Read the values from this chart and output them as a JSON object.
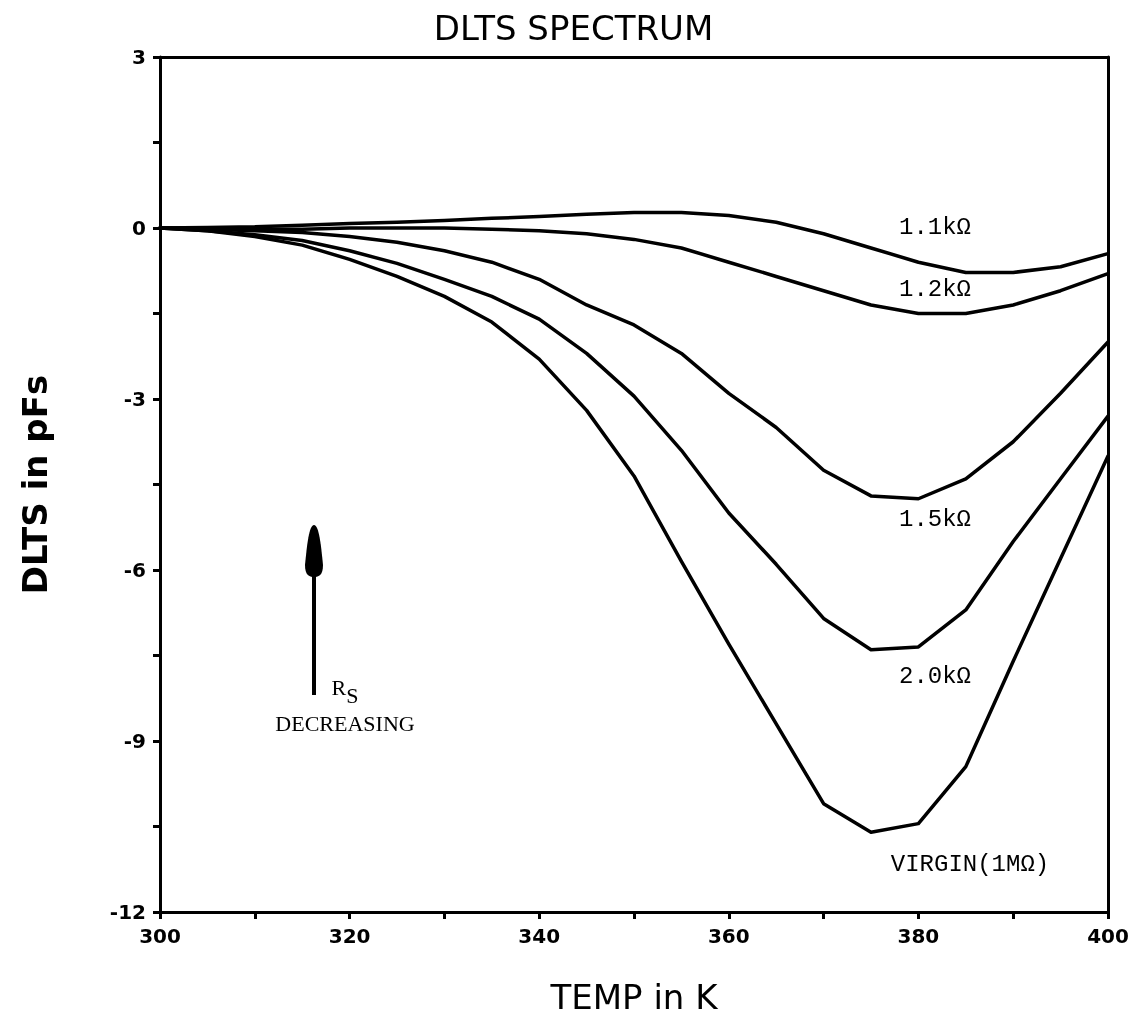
{
  "chart_data": {
    "type": "line",
    "title": "DLTS SPECTRUM",
    "xlabel": "TEMP in K",
    "ylabel": "DLTS in pFs",
    "x": [
      300,
      305,
      310,
      315,
      320,
      325,
      330,
      335,
      340,
      345,
      350,
      355,
      360,
      365,
      370,
      375,
      380,
      385,
      390,
      395,
      400
    ],
    "series": [
      {
        "color": "#000000",
        "values": [
          0,
          0.01,
          0.02,
          0.05,
          0.08,
          0.1,
          0.13,
          0.17,
          0.2,
          0.24,
          0.27,
          0.27,
          0.22,
          0.1,
          -0.1,
          -0.35,
          -0.6,
          -0.78,
          -0.78,
          -0.68,
          -0.45
        ]
      },
      {
        "color": "#000000",
        "values": [
          0,
          0,
          -0.02,
          -0.02,
          0,
          0,
          0,
          -0.02,
          -0.05,
          -0.1,
          -0.2,
          -0.35,
          -0.6,
          -0.85,
          -1.1,
          -1.35,
          -1.5,
          -1.5,
          -1.35,
          -1.1,
          -0.8
        ]
      },
      {
        "color": "#000000",
        "values": [
          0,
          -0.02,
          -0.05,
          -0.08,
          -0.15,
          -0.25,
          -0.4,
          -0.6,
          -0.9,
          -1.35,
          -1.7,
          -2.2,
          -2.9,
          -3.5,
          -4.25,
          -4.7,
          -4.75,
          -4.4,
          -3.75,
          -2.9,
          -2.0
        ]
      },
      {
        "color": "#000000",
        "values": [
          0,
          -0.05,
          -0.12,
          -0.22,
          -0.4,
          -0.62,
          -0.9,
          -1.2,
          -1.6,
          -2.2,
          -2.95,
          -3.9,
          -5.0,
          -5.9,
          -6.85,
          -7.4,
          -7.35,
          -6.7,
          -5.5,
          -4.4,
          -3.3
        ]
      },
      {
        "color": "#000000",
        "values": [
          0,
          -0.05,
          -0.15,
          -0.3,
          -0.55,
          -0.85,
          -1.2,
          -1.65,
          -2.3,
          -3.2,
          -4.35,
          -5.85,
          -7.3,
          -8.7,
          -10.1,
          -10.6,
          -10.45,
          -9.45,
          -7.6,
          -5.8,
          -4.0
        ]
      }
    ],
    "xlim": [
      300,
      400
    ],
    "xticks": [
      300,
      {
        "value": 310,
        "label": null
      },
      320,
      {
        "value": 330,
        "label": null
      },
      340,
      {
        "value": 350,
        "label": null
      },
      360,
      {
        "value": 370,
        "label": null
      },
      380,
      {
        "value": 390,
        "label": null
      },
      400
    ],
    "ylim": [
      -12,
      3
    ],
    "yticks": [
      -12,
      {
        "value": -10.5,
        "label": null
      },
      -9,
      {
        "value": -7.5,
        "label": null
      },
      -6,
      {
        "value": -4.5,
        "label": null
      },
      -3,
      {
        "value": -1.5,
        "label": null
      },
      0,
      {
        "value": 1.5,
        "label": null
      },
      3
    ],
    "grid": false,
    "marker": "none",
    "line_style": "solid",
    "annotations": [
      "1.1kΩ",
      "1.2kΩ",
      "1.5kΩ",
      "2.0kΩ",
      "VIRGIN(1MΩ)",
      "R$_{S}$\nDECREASING"
    ]
  }
}
